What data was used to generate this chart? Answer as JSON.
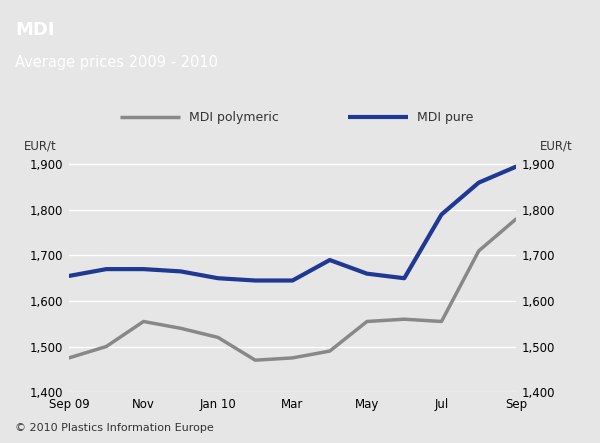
{
  "title_line1": "MDI",
  "title_line2": "Average prices 2009 - 2010",
  "header_bg_color": "#1f3894",
  "chart_bg_color": "#e6e6e6",
  "ylabel_left": "EUR/t",
  "ylabel_right": "EUR/t",
  "footer": "© 2010 Plastics Information Europe",
  "x_labels": [
    "Sep 09",
    "Nov",
    "Jan 10",
    "Mar",
    "May",
    "Jul",
    "Sep"
  ],
  "x_ticks": [
    0,
    2,
    4,
    6,
    8,
    10,
    12
  ],
  "ylim": [
    1400,
    1940
  ],
  "yticks": [
    1400,
    1500,
    1600,
    1700,
    1800,
    1900
  ],
  "series": [
    {
      "name": "MDI polymeric",
      "color": "#888888",
      "linewidth": 2.5,
      "data_x": [
        0,
        1,
        2,
        3,
        4,
        5,
        6,
        7,
        8,
        9,
        10,
        11,
        12
      ],
      "data_y": [
        1475,
        1500,
        1555,
        1540,
        1520,
        1470,
        1475,
        1490,
        1555,
        1560,
        1555,
        1710,
        1780
      ]
    },
    {
      "name": "MDI pure",
      "color": "#1f3894",
      "linewidth": 3.0,
      "data_x": [
        0,
        1,
        2,
        3,
        4,
        5,
        6,
        7,
        8,
        9,
        10,
        11,
        12
      ],
      "data_y": [
        1655,
        1670,
        1670,
        1665,
        1650,
        1645,
        1645,
        1690,
        1660,
        1650,
        1790,
        1860,
        1895
      ]
    }
  ]
}
